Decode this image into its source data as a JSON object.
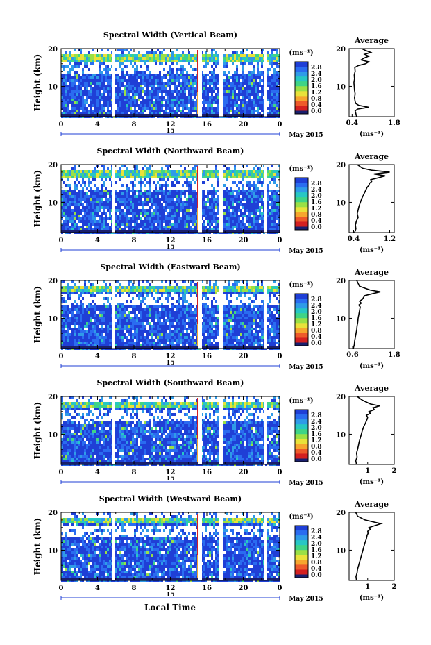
{
  "figure": {
    "xlabel": "Local Time",
    "date_label": "May 2015",
    "day_label": "15",
    "ylabel": "Height (km)",
    "colorbar_unit": "(ms⁻¹)",
    "colorbar_ticks": [
      "0.0",
      "0.4",
      "0.8",
      "1.2",
      "1.6",
      "2.0",
      "2.4",
      "2.8"
    ],
    "colormap": [
      "#1a1f6e",
      "#1f3fd6",
      "#2a6cf0",
      "#2f9be8",
      "#27c7c4",
      "#3fd486",
      "#9ae046",
      "#e9e23a",
      "#f6a62e",
      "#ee5a2a",
      "#d42020"
    ],
    "average_title": "Average",
    "average_xlabel": "(ms⁻¹)"
  },
  "chart_data": [
    {
      "type": "heatmap",
      "title": "Spectral Width (Vertical Beam)",
      "ylabel": "Height (km)",
      "xlabel": "Local Time",
      "x_ticks": [
        "0",
        "4",
        "8",
        "12",
        "16",
        "20",
        "0"
      ],
      "xlim": [
        0,
        24
      ],
      "y_ticks": [
        "10",
        "20"
      ],
      "ylim": [
        2,
        20
      ],
      "colorbar_ticks": [
        "0.0",
        "0.4",
        "0.8",
        "1.2",
        "1.6",
        "2.0",
        "2.4",
        "2.8"
      ]
    },
    {
      "type": "line",
      "title": "Average",
      "x_ticks": [
        "0.4",
        "1.8"
      ],
      "xlim": [
        0.3,
        1.8
      ],
      "y_ticks": [
        "10",
        "20"
      ],
      "ylim": [
        2,
        20
      ],
      "xlabel": "(ms⁻¹)",
      "x": [
        0.55,
        0.52,
        0.5,
        0.58,
        0.95,
        0.62,
        0.52,
        0.5,
        0.48,
        0.5,
        0.48,
        0.47,
        0.46,
        0.48,
        0.47,
        0.5,
        0.49,
        0.6,
        0.85,
        0.95,
        0.7,
        0.8,
        0.95,
        0.82,
        1.02,
        0.85,
        0.72
      ],
      "y": [
        2,
        3,
        3.5,
        4,
        4.5,
        5,
        5.5,
        6,
        7,
        8,
        9,
        10,
        11,
        12,
        13,
        14,
        15,
        15.5,
        16,
        16.5,
        17,
        17.5,
        18,
        18.5,
        19,
        19.5,
        20
      ]
    },
    {
      "type": "heatmap",
      "title": "Spectral Width (Northward Beam)",
      "ylabel": "Height (km)",
      "xlabel": "Local Time",
      "x_ticks": [
        "0",
        "4",
        "8",
        "12",
        "16",
        "20",
        "0"
      ],
      "xlim": [
        0,
        24
      ],
      "y_ticks": [
        "10",
        "20"
      ],
      "ylim": [
        2,
        20
      ],
      "colorbar_ticks": [
        "0.0",
        "0.4",
        "0.8",
        "1.2",
        "1.6",
        "2.0",
        "2.4",
        "2.8"
      ]
    },
    {
      "type": "line",
      "title": "Average",
      "x_ticks": [
        "0.4",
        "1.2"
      ],
      "xlim": [
        0.3,
        1.3
      ],
      "y_ticks": [
        "10",
        "20"
      ],
      "ylim": [
        2,
        20
      ],
      "xlabel": "(ms⁻¹)",
      "x": [
        0.42,
        0.45,
        0.44,
        0.46,
        0.5,
        0.48,
        0.5,
        0.52,
        0.55,
        0.58,
        0.62,
        0.66,
        0.7,
        0.74,
        0.75,
        0.8,
        0.78,
        0.95,
        1.1,
        0.85,
        1.2,
        0.8,
        0.6,
        0.48
      ],
      "y": [
        2,
        3,
        4,
        5,
        6,
        7,
        8,
        9,
        10,
        11,
        12,
        13,
        14,
        14.5,
        15,
        15.5,
        16,
        16.5,
        17,
        17.5,
        18,
        18.5,
        19,
        20
      ]
    },
    {
      "type": "heatmap",
      "title": "Spectral Width (Eastward Beam)",
      "ylabel": "Height (km)",
      "xlabel": "Local Time",
      "x_ticks": [
        "0",
        "4",
        "8",
        "12",
        "16",
        "20",
        "0"
      ],
      "xlim": [
        0,
        24
      ],
      "y_ticks": [
        "10",
        "20"
      ],
      "ylim": [
        2,
        20
      ],
      "colorbar_ticks": [
        "0.0",
        "0.4",
        "0.8",
        "1.2",
        "1.6",
        "2.0",
        "2.4",
        "2.8"
      ]
    },
    {
      "type": "line",
      "title": "Average",
      "x_ticks": [
        "0.6",
        "1.8"
      ],
      "xlim": [
        0.5,
        1.8
      ],
      "y_ticks": [
        "10",
        "20"
      ],
      "ylim": [
        2,
        20
      ],
      "xlabel": "(ms⁻¹)",
      "x": [
        0.62,
        0.65,
        0.66,
        0.68,
        0.7,
        0.72,
        0.73,
        0.75,
        0.76,
        0.78,
        0.8,
        0.82,
        0.78,
        0.85,
        0.8,
        0.88,
        0.95,
        1.4,
        1.1,
        0.8,
        0.72
      ],
      "y": [
        2,
        3,
        4,
        5,
        6,
        7,
        8,
        9,
        10,
        11,
        12,
        13,
        13.5,
        14,
        14.5,
        15,
        16,
        17,
        17.5,
        18.5,
        20
      ]
    },
    {
      "type": "heatmap",
      "title": "Spectral Width (Southward Beam)",
      "ylabel": "Height (km)",
      "xlabel": "Local Time",
      "x_ticks": [
        "0",
        "4",
        "8",
        "12",
        "16",
        "20",
        "0"
      ],
      "xlim": [
        0,
        24
      ],
      "y_ticks": [
        "10",
        "20"
      ],
      "ylim": [
        2,
        20
      ],
      "colorbar_ticks": [
        "0.0",
        "0.4",
        "0.8",
        "1.2",
        "1.6",
        "2.0",
        "2.4",
        "2.8"
      ]
    },
    {
      "type": "line",
      "title": "Average",
      "x_ticks": [
        "1",
        "2"
      ],
      "xlim": [
        0.3,
        2.0
      ],
      "y_ticks": [
        "10",
        "20"
      ],
      "ylim": [
        2,
        20
      ],
      "xlabel": "(ms⁻¹)",
      "x": [
        0.58,
        0.55,
        0.6,
        0.58,
        0.62,
        0.65,
        0.68,
        0.72,
        0.76,
        0.8,
        0.85,
        0.92,
        0.98,
        1.0,
        0.95,
        1.1,
        1.05,
        1.25,
        1.2,
        1.45,
        1.1,
        0.8,
        0.6
      ],
      "y": [
        2,
        3,
        4,
        5,
        6,
        7,
        8,
        9,
        10,
        11,
        12,
        13,
        14,
        14.5,
        15,
        15.5,
        16,
        16.5,
        17,
        17.5,
        18,
        19,
        20
      ]
    },
    {
      "type": "heatmap",
      "title": "Spectral Width (Westward Beam)",
      "ylabel": "Height (km)",
      "xlabel": "Local Time",
      "x_ticks": [
        "0",
        "4",
        "8",
        "12",
        "16",
        "20",
        "0"
      ],
      "xlim": [
        0,
        24
      ],
      "y_ticks": [
        "10",
        "20"
      ],
      "ylim": [
        2,
        20
      ],
      "colorbar_ticks": [
        "0.0",
        "0.4",
        "0.8",
        "1.2",
        "1.6",
        "2.0",
        "2.4",
        "2.8"
      ]
    },
    {
      "type": "line",
      "title": "Average",
      "x_ticks": [
        "1",
        "2"
      ],
      "xlim": [
        0.3,
        2.0
      ],
      "y_ticks": [
        "10",
        "20"
      ],
      "ylim": [
        2,
        20
      ],
      "xlabel": "(ms⁻¹)",
      "x": [
        0.58,
        0.56,
        0.6,
        0.62,
        0.66,
        0.7,
        0.74,
        0.78,
        0.82,
        0.86,
        0.9,
        0.95,
        0.98,
        1.02,
        1.0,
        1.1,
        1.05,
        1.5,
        1.2,
        0.9,
        0.62,
        0.55
      ],
      "y": [
        2,
        3,
        4,
        5,
        6,
        7,
        8,
        9,
        10,
        11,
        12,
        13,
        14,
        14.5,
        15,
        15.5,
        16,
        17,
        17.5,
        18,
        19,
        20
      ]
    }
  ]
}
